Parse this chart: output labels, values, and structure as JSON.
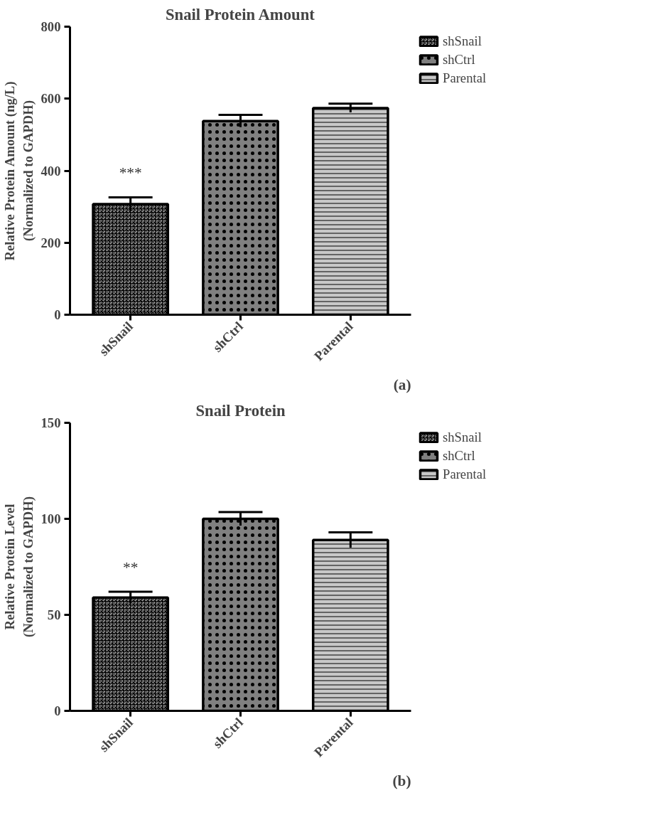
{
  "chart_data": [
    {
      "type": "bar",
      "title": "Snail Protein Amount",
      "ylabel": "Relative Protein Amount (ng/L)\n(Normalized to GAPDH)",
      "categories": [
        "shSnail",
        "shCtrl",
        "Parental"
      ],
      "series": [
        {
          "name": "shSnail",
          "color": "#9a9a9a",
          "values": [
            307,
            null,
            null
          ],
          "errors": [
            19,
            null,
            null
          ]
        },
        {
          "name": "shCtrl",
          "color": "#808080",
          "values": [
            null,
            538,
            null
          ],
          "errors": [
            null,
            17,
            null
          ]
        },
        {
          "name": "Parental",
          "color": "#c8c8c8",
          "values": [
            null,
            null,
            574
          ],
          "errors": [
            null,
            null,
            12
          ]
        }
      ],
      "ylim": [
        0,
        800
      ],
      "yticks": [
        0,
        200,
        400,
        600,
        800
      ],
      "grid": false,
      "legend": "right",
      "annotations": [
        "***",
        "(a)"
      ]
    },
    {
      "type": "bar",
      "title": "Snail Protein",
      "ylabel": "Relative Protein Level\n(Normalized to GAPDH)",
      "categories": [
        "shSnail",
        "shCtrl",
        "Parental"
      ],
      "series": [
        {
          "name": "shSnail",
          "color": "#9a9a9a",
          "values": [
            59,
            null,
            null
          ],
          "errors": [
            3,
            null,
            null
          ]
        },
        {
          "name": "shCtrl",
          "color": "#808080",
          "values": [
            null,
            100,
            null
          ],
          "errors": [
            null,
            3.5,
            null
          ]
        },
        {
          "name": "Parental",
          "color": "#c8c8c8",
          "values": [
            null,
            null,
            89
          ],
          "errors": [
            null,
            null,
            4
          ]
        }
      ],
      "ylim": [
        0,
        150
      ],
      "yticks": [
        0,
        50,
        100,
        150
      ],
      "grid": false,
      "legend": "right",
      "annotations": [
        "**",
        "(b)"
      ]
    }
  ]
}
